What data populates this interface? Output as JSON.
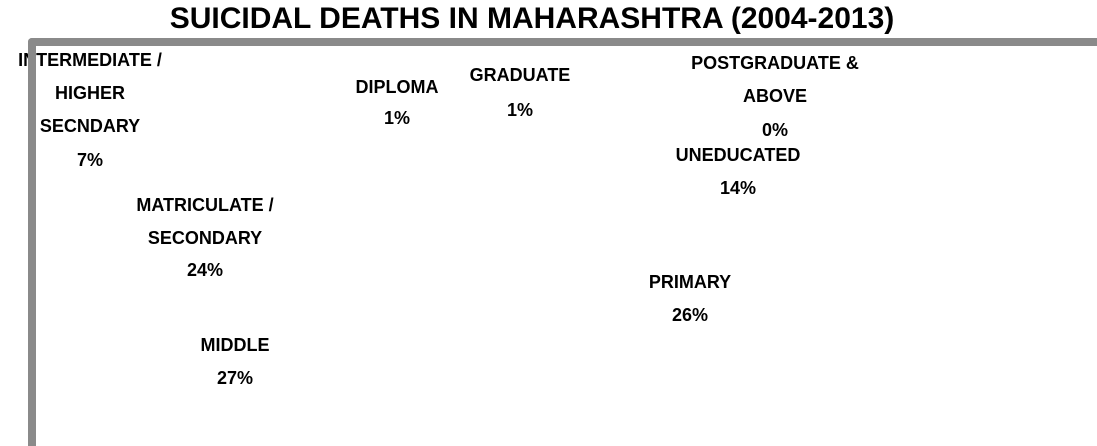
{
  "chart_data": {
    "type": "pie",
    "title": "SUICIDAL DEATHS IN MAHARASHTRA (2004-2013)",
    "categories": [
      "UNEDUCATED",
      "PRIMARY",
      "MIDDLE",
      "MATRICULATE / SECONDARY",
      "INTERMEDIATE / HIGHER SECNDARY",
      "DIPLOMA",
      "GRADUATE",
      "POSTGRADUATE & ABOVE"
    ],
    "values": [
      14,
      26,
      27,
      24,
      7,
      1,
      1,
      0
    ],
    "value_labels": [
      "14%",
      "26%",
      "27%",
      "24%",
      "7%",
      "1%",
      "1%",
      "0%"
    ],
    "colors": [
      "#ffffff",
      "#ffffff",
      "#ffffff",
      "#ffffff",
      "#ffffff",
      "#ffffff",
      "#ffffff",
      "#ffffff"
    ]
  }
}
